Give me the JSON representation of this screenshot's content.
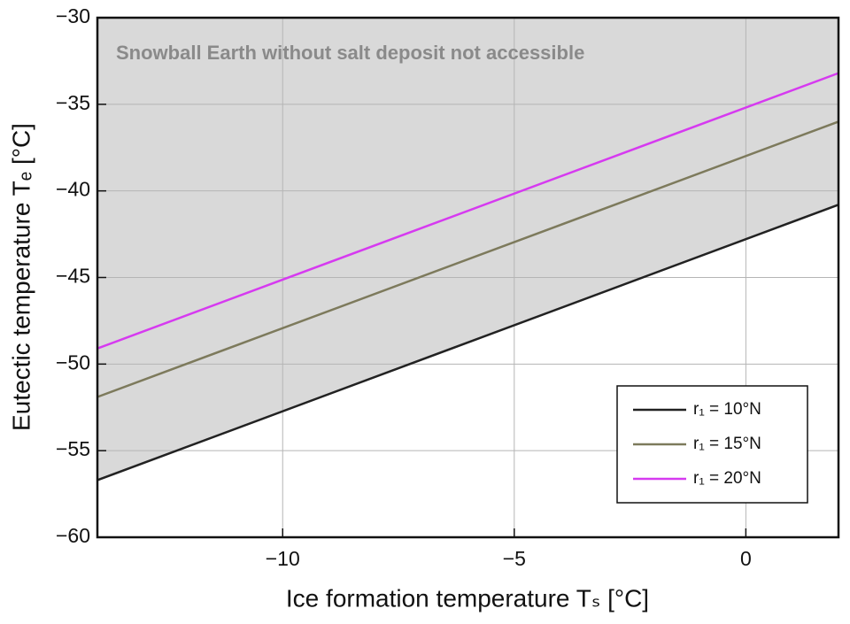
{
  "chart_data": {
    "type": "line",
    "annotation": "Snowball Earth without salt deposit not accessible",
    "x_label": "Ice formation temperature Tₛ [°C]",
    "y_label": "Eutectic temperature Tₑ [°C]",
    "x": [
      -14,
      2
    ],
    "series": [
      {
        "name": "r₁ = 10°N",
        "color": "#222222",
        "values": [
          -56.7,
          -40.8
        ]
      },
      {
        "name": "r₁ = 15°N",
        "color": "#7d7a5c",
        "values": [
          -51.9,
          -36.0
        ]
      },
      {
        "name": "r₁ = 20°N",
        "color": "#d63af0",
        "values": [
          -49.1,
          -33.2
        ]
      }
    ],
    "shade_color": "#d9d9d9",
    "xlim": [
      -14,
      2
    ],
    "xticks": [
      {
        "value": -10,
        "label": "−10"
      },
      {
        "value": -5,
        "label": "−5"
      },
      0
    ],
    "ylim": [
      -60,
      -30
    ],
    "yticks": [
      {
        "value": -60,
        "label": "−60"
      },
      {
        "value": -55,
        "label": "−55"
      },
      {
        "value": -50,
        "label": "−50"
      },
      {
        "value": -45,
        "label": "−45"
      },
      {
        "value": -40,
        "label": "−40"
      },
      {
        "value": -35,
        "label": "−35"
      },
      {
        "value": -30,
        "label": "−30"
      }
    ],
    "grid": true
  }
}
